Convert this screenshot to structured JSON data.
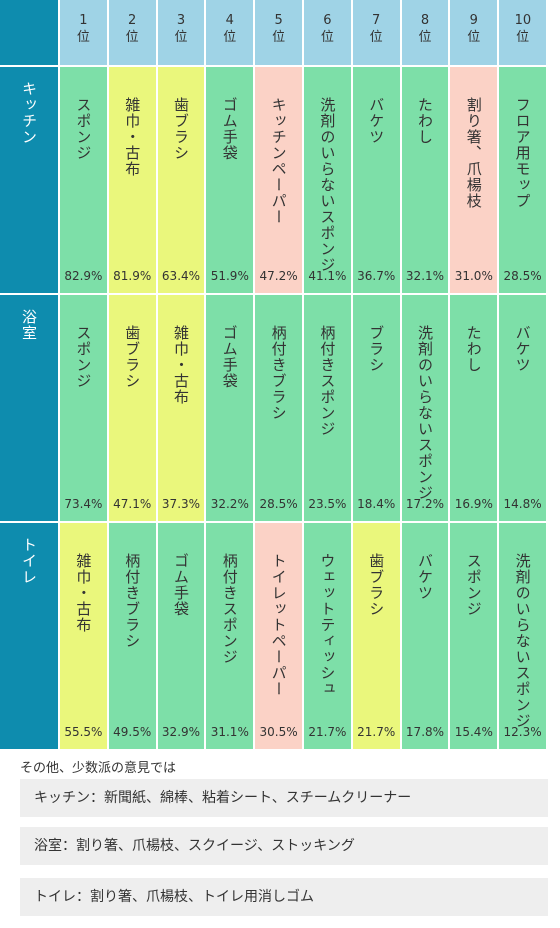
{
  "colors": {
    "header_bg": "#9fd3e6",
    "row_label_bg": "#0e8cae",
    "green": "#7ddfa8",
    "yellow": "#eaf77c",
    "pink": "#fbd2c6",
    "grid_line": "#ffffff",
    "note_bg": "#eeeeee"
  },
  "chart_data": {
    "type": "table",
    "ranks": [
      "1位",
      "2位",
      "3位",
      "4位",
      "5位",
      "6位",
      "7位",
      "8位",
      "9位",
      "10位"
    ],
    "rows": [
      {
        "label": "キッチン",
        "items": [
          {
            "name": "スポンジ",
            "value": "82.9%",
            "color": "green"
          },
          {
            "name": "雑巾・古布",
            "value": "81.9%",
            "color": "yellow"
          },
          {
            "name": "歯ブラシ",
            "value": "63.4%",
            "color": "yellow"
          },
          {
            "name": "ゴム手袋",
            "value": "51.9%",
            "color": "green"
          },
          {
            "name": "キッチンペーパー",
            "value": "47.2%",
            "color": "pink"
          },
          {
            "name": "洗剤のいらないスポンジ",
            "value": "41.1%",
            "color": "green"
          },
          {
            "name": "バケツ",
            "value": "36.7%",
            "color": "green"
          },
          {
            "name": "たわし",
            "value": "32.1%",
            "color": "green"
          },
          {
            "name": "割り箸、爪楊枝",
            "value": "31.0%",
            "color": "pink"
          },
          {
            "name": "フロア用モップ",
            "value": "28.5%",
            "color": "green"
          }
        ]
      },
      {
        "label": "浴室",
        "items": [
          {
            "name": "スポンジ",
            "value": "73.4%",
            "color": "green"
          },
          {
            "name": "歯ブラシ",
            "value": "47.1%",
            "color": "yellow"
          },
          {
            "name": "雑巾・古布",
            "value": "37.3%",
            "color": "yellow"
          },
          {
            "name": "ゴム手袋",
            "value": "32.2%",
            "color": "green"
          },
          {
            "name": "柄付きブラシ",
            "value": "28.5%",
            "color": "green"
          },
          {
            "name": "柄付きスポンジ",
            "value": "23.5%",
            "color": "green"
          },
          {
            "name": "ブラシ",
            "value": "18.4%",
            "color": "green"
          },
          {
            "name": "洗剤のいらないスポンジ",
            "value": "17.2%",
            "color": "green"
          },
          {
            "name": "たわし",
            "value": "16.9%",
            "color": "green"
          },
          {
            "name": "バケツ",
            "value": "14.8%",
            "color": "green"
          }
        ]
      },
      {
        "label": "トイレ",
        "items": [
          {
            "name": "雑巾・古布",
            "value": "55.5%",
            "color": "yellow"
          },
          {
            "name": "柄付きブラシ",
            "value": "49.5%",
            "color": "green"
          },
          {
            "name": "ゴム手袋",
            "value": "32.9%",
            "color": "green"
          },
          {
            "name": "柄付きスポンジ",
            "value": "31.1%",
            "color": "green"
          },
          {
            "name": "トイレットペーパー",
            "value": "30.5%",
            "color": "pink"
          },
          {
            "name": "ウェットティッシュ",
            "value": "21.7%",
            "color": "green"
          },
          {
            "name": "歯ブラシ",
            "value": "21.7%",
            "color": "yellow"
          },
          {
            "name": "バケツ",
            "value": "17.8%",
            "color": "green"
          },
          {
            "name": "スポンジ",
            "value": "15.4%",
            "color": "green"
          },
          {
            "name": "洗剤のいらないスポンジ",
            "value": "12.3%",
            "color": "green"
          }
        ]
      }
    ]
  },
  "notes": {
    "title": "その他、少数派の意見では",
    "items": [
      "キッチン：新聞紙、綿棒、粘着シート、スチームクリーナー",
      "浴室：割り箸、爪楊枝、スクイージ、ストッキング",
      "トイレ：割り箸、爪楊枝、トイレ用消しゴム"
    ]
  }
}
